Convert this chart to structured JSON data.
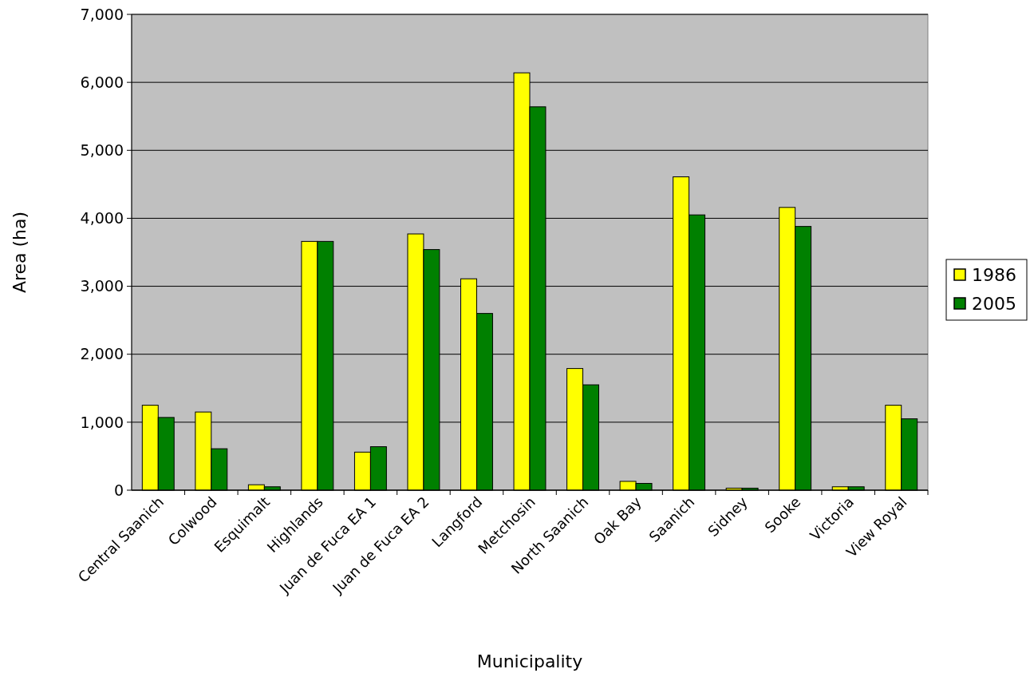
{
  "chart_data": {
    "type": "bar",
    "xlabel": "Municipality",
    "ylabel": "Area (ha)",
    "categories": [
      "Central Saanich",
      "Colwood",
      "Esquimalt",
      "Highlands",
      "Juan de Fuca EA 1",
      "Juan de Fuca EA 2",
      "Langford",
      "Metchosin",
      "North Saanich",
      "Oak Bay",
      "Saanich",
      "Sidney",
      "Sooke",
      "Victoria",
      "View Royal"
    ],
    "series": [
      {
        "name": "1986",
        "color": "#ffff00",
        "values": [
          1250,
          1150,
          80,
          3660,
          560,
          3770,
          3110,
          6140,
          1790,
          130,
          4610,
          30,
          4160,
          50,
          1250
        ]
      },
      {
        "name": "2005",
        "color": "#008000",
        "values": [
          1070,
          610,
          50,
          3660,
          640,
          3540,
          2600,
          5640,
          1550,
          100,
          4050,
          30,
          3880,
          50,
          1050
        ]
      }
    ],
    "ylim": [
      0,
      7000
    ],
    "yticks": [
      {
        "value": 0,
        "label": "0"
      },
      {
        "value": 1000,
        "label": "1,000"
      },
      {
        "value": 2000,
        "label": "2,000"
      },
      {
        "value": 3000,
        "label": "3,000"
      },
      {
        "value": 4000,
        "label": "4,000"
      },
      {
        "value": 5000,
        "label": "5,000"
      },
      {
        "value": 6000,
        "label": "6,000"
      },
      {
        "value": 7000,
        "label": "7,000"
      }
    ],
    "grid": "y",
    "legend": "right"
  }
}
